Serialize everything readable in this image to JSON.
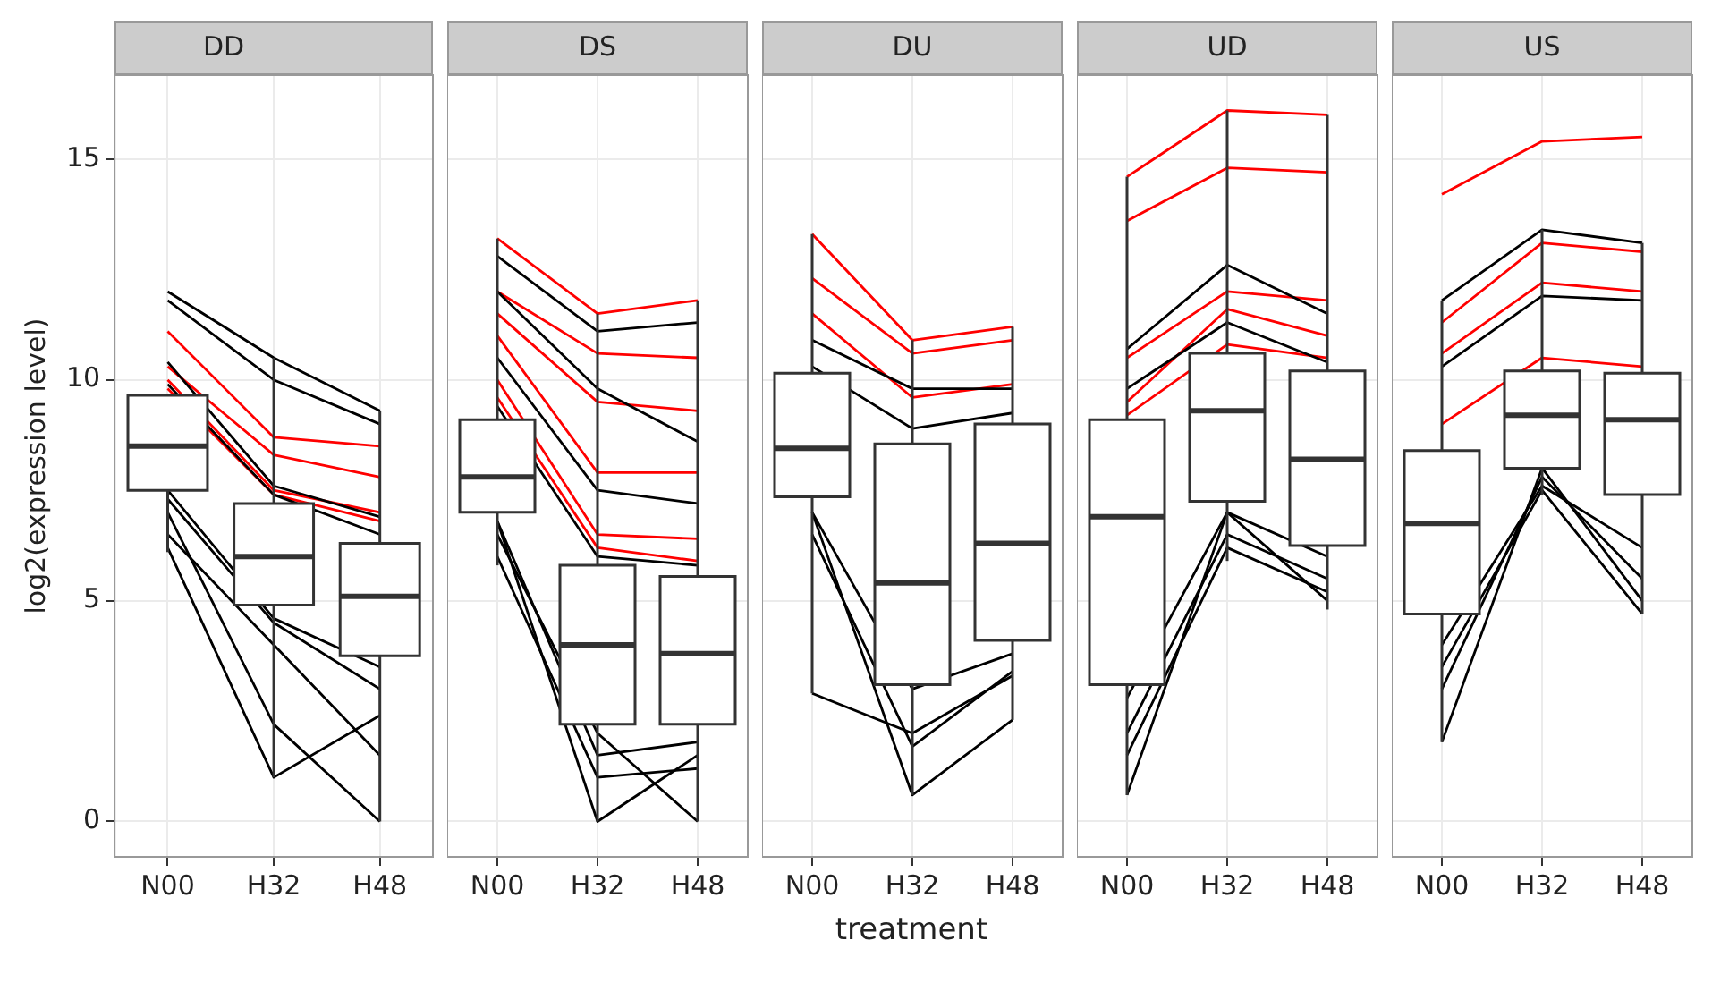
{
  "chart_data": [
    {
      "type": "box",
      "title": "DD",
      "ylabel": "log2(expression level)",
      "categories": [
        "N00",
        "H32",
        "H48"
      ],
      "ylim": [
        -0.8,
        16.9
      ],
      "yticks": [
        0,
        5,
        10,
        15
      ],
      "grid": true,
      "marker": "none",
      "line_style": "solid",
      "boxes": [
        {
          "low": 6.1,
          "q1": 7.5,
          "median": 8.5,
          "q3": 9.65
        },
        {
          "low": 1.0,
          "q1": 4.9,
          "median": 6.0,
          "q3": 7.2,
          "high": 10.5
        },
        {
          "low": 0,
          "q1": 3.75,
          "median": 5.1,
          "q3": 6.3,
          "high": 9.3
        }
      ],
      "series": [
        {
          "type": "line",
          "color": "#000000",
          "values": [
            12.0,
            10.5,
            9.3
          ]
        },
        {
          "type": "line",
          "color": "#000000",
          "values": [
            11.8,
            10.0,
            9.0
          ]
        },
        {
          "type": "line",
          "color": "#000000",
          "values": [
            10.4,
            7.6,
            6.9
          ]
        },
        {
          "type": "line",
          "color": "#000000",
          "values": [
            9.9,
            7.4,
            6.5
          ]
        },
        {
          "type": "line",
          "color": "#000000",
          "values": [
            7.3,
            4.5,
            3.0
          ]
        },
        {
          "type": "line",
          "color": "#000000",
          "values": [
            7.5,
            4.6,
            3.5
          ]
        },
        {
          "type": "line",
          "color": "#000000",
          "values": [
            6.5,
            4.0,
            1.5
          ]
        },
        {
          "type": "line",
          "color": "#000000",
          "values": [
            7.0,
            2.2,
            0.0
          ]
        },
        {
          "type": "line",
          "color": "#000000",
          "values": [
            6.2,
            1.0,
            2.4
          ]
        },
        {
          "type": "line",
          "color": "#ff0000",
          "values": [
            11.1,
            8.7,
            8.5
          ]
        },
        {
          "type": "line",
          "color": "#ff0000",
          "values": [
            10.3,
            8.3,
            7.8
          ]
        },
        {
          "type": "line",
          "color": "#ff0000",
          "values": [
            10.0,
            7.5,
            7.0
          ]
        },
        {
          "type": "line",
          "color": "#ff0000",
          "values": [
            9.8,
            7.4,
            6.8
          ]
        }
      ]
    },
    {
      "type": "box",
      "title": "DS",
      "categories": [
        "N00",
        "H32",
        "H48"
      ],
      "ylim": [
        -0.8,
        16.9
      ],
      "yticks": [
        0,
        5,
        10,
        15
      ],
      "grid": true,
      "marker": "none",
      "line_style": "solid",
      "tick_labels": "x",
      "boxes": [
        {
          "low": 5.8,
          "q1": 7.0,
          "median": 7.8,
          "q3": 9.1,
          "high": 13.2
        },
        {
          "low": 0,
          "q1": 2.2,
          "median": 4.0,
          "q3": 5.8,
          "high": 11.5
        },
        {
          "low": 0,
          "q1": 2.2,
          "median": 3.8,
          "q3": 5.55,
          "high": 11.8
        }
      ],
      "series": [
        {
          "type": "line",
          "color": "#000000",
          "values": [
            12.8,
            11.1,
            11.3
          ]
        },
        {
          "type": "line",
          "color": "#000000",
          "values": [
            12.0,
            9.8,
            8.6
          ]
        },
        {
          "type": "line",
          "color": "#000000",
          "values": [
            10.5,
            7.5,
            7.2
          ]
        },
        {
          "type": "line",
          "color": "#000000",
          "values": [
            9.4,
            6.0,
            5.8
          ]
        },
        {
          "type": "line",
          "color": "#000000",
          "values": [
            6.8,
            1.5,
            1.8
          ]
        },
        {
          "type": "line",
          "color": "#000000",
          "values": [
            6.8,
            0.0,
            1.5
          ]
        },
        {
          "type": "line",
          "color": "#000000",
          "values": [
            6.5,
            2.0,
            0.0
          ]
        },
        {
          "type": "line",
          "color": "#000000",
          "values": [
            6.0,
            1.0,
            1.2
          ]
        },
        {
          "type": "line",
          "color": "#ff0000",
          "values": [
            13.2,
            11.5,
            11.8
          ]
        },
        {
          "type": "line",
          "color": "#ff0000",
          "values": [
            12.0,
            10.6,
            10.5
          ]
        },
        {
          "type": "line",
          "color": "#ff0000",
          "values": [
            11.5,
            9.5,
            9.3
          ]
        },
        {
          "type": "line",
          "color": "#ff0000",
          "values": [
            11.0,
            7.9,
            7.9
          ]
        },
        {
          "type": "line",
          "color": "#ff0000",
          "values": [
            10.0,
            6.5,
            6.4
          ]
        },
        {
          "type": "line",
          "color": "#ff0000",
          "values": [
            9.6,
            6.2,
            5.9
          ]
        }
      ]
    },
    {
      "type": "box",
      "title": "DU",
      "xlabel": "treatment",
      "categories": [
        "N00",
        "H32",
        "H48"
      ],
      "ylim": [
        -0.8,
        16.9
      ],
      "yticks": [
        0,
        5,
        10,
        15
      ],
      "grid": true,
      "marker": "none",
      "line_style": "solid",
      "tick_labels": "x",
      "boxes": [
        {
          "low": 2.9,
          "q1": 7.35,
          "median": 8.45,
          "q3": 10.15,
          "high": 13.3
        },
        {
          "low": 0.6,
          "q1": 3.1,
          "median": 5.4,
          "q3": 8.55,
          "high": 10.9
        },
        {
          "low": 2.3,
          "q1": 4.1,
          "median": 6.3,
          "q3": 9.0,
          "high": 11.2
        }
      ],
      "series": [
        {
          "type": "line",
          "color": "#000000",
          "values": [
            10.9,
            9.8,
            9.8
          ]
        },
        {
          "type": "line",
          "color": "#000000",
          "values": [
            10.3,
            8.9,
            9.25
          ]
        },
        {
          "type": "line",
          "color": "#000000",
          "values": [
            7.0,
            3.0,
            3.8
          ]
        },
        {
          "type": "line",
          "color": "#000000",
          "values": [
            6.5,
            1.7,
            3.4
          ]
        },
        {
          "type": "line",
          "color": "#000000",
          "values": [
            7.0,
            0.6,
            2.3
          ]
        },
        {
          "type": "line",
          "color": "#000000",
          "values": [
            2.9,
            2.0,
            3.3
          ]
        },
        {
          "type": "line",
          "color": "#ff0000",
          "values": [
            13.3,
            10.9,
            11.2
          ]
        },
        {
          "type": "line",
          "color": "#ff0000",
          "values": [
            12.3,
            10.6,
            10.9
          ]
        },
        {
          "type": "line",
          "color": "#ff0000",
          "values": [
            11.5,
            9.6,
            9.9
          ]
        }
      ]
    },
    {
      "type": "box",
      "title": "UD",
      "categories": [
        "N00",
        "H32",
        "H48"
      ],
      "ylim": [
        -0.8,
        16.9
      ],
      "yticks": [
        0,
        5,
        10,
        15
      ],
      "grid": true,
      "marker": "none",
      "line_style": "solid",
      "tick_labels": "x",
      "boxes": [
        {
          "low": 0.6,
          "q1": 3.1,
          "median": 6.9,
          "q3": 9.1,
          "high": 14.6
        },
        {
          "low": 5.9,
          "q1": 7.25,
          "median": 9.3,
          "q3": 10.6,
          "high": 16.1
        },
        {
          "low": 4.8,
          "q1": 6.25,
          "median": 8.2,
          "q3": 10.2,
          "high": 16.0
        }
      ],
      "series": [
        {
          "type": "line",
          "color": "#000000",
          "values": [
            10.7,
            12.6,
            11.5
          ]
        },
        {
          "type": "line",
          "color": "#000000",
          "values": [
            9.8,
            11.3,
            10.4
          ]
        },
        {
          "type": "line",
          "color": "#000000",
          "values": [
            2.0,
            6.5,
            5.5
          ]
        },
        {
          "type": "line",
          "color": "#000000",
          "values": [
            1.5,
            6.2,
            5.2
          ]
        },
        {
          "type": "line",
          "color": "#000000",
          "values": [
            2.8,
            7.0,
            6.0
          ]
        },
        {
          "type": "line",
          "color": "#000000",
          "values": [
            0.6,
            7.0,
            5.0
          ]
        },
        {
          "type": "line",
          "color": "#ff0000",
          "values": [
            14.6,
            16.1,
            16.0
          ]
        },
        {
          "type": "line",
          "color": "#ff0000",
          "values": [
            13.6,
            14.8,
            14.7
          ]
        },
        {
          "type": "line",
          "color": "#ff0000",
          "values": [
            10.5,
            12.0,
            11.8
          ]
        },
        {
          "type": "line",
          "color": "#ff0000",
          "values": [
            9.5,
            11.6,
            11.0
          ]
        },
        {
          "type": "line",
          "color": "#ff0000",
          "values": [
            9.2,
            10.8,
            10.5
          ]
        }
      ]
    },
    {
      "type": "box",
      "title": "US",
      "categories": [
        "N00",
        "H32",
        "H48"
      ],
      "ylim": [
        -0.8,
        16.9
      ],
      "yticks": [
        0,
        5,
        10,
        15
      ],
      "grid": true,
      "marker": "none",
      "line_style": "solid",
      "tick_labels": "x",
      "boxes": [
        {
          "low": 1.8,
          "q1": 4.7,
          "median": 6.75,
          "q3": 8.4,
          "high": 11.8
        },
        {
          "low": 7.4,
          "q1": 8.0,
          "median": 9.2,
          "q3": 10.2,
          "high": 13.4
        },
        {
          "low": 4.7,
          "q1": 7.4,
          "median": 9.1,
          "q3": 10.15,
          "high": 13.1
        }
      ],
      "series": [
        {
          "type": "line",
          "color": "#000000",
          "values": [
            11.8,
            13.4,
            13.1
          ]
        },
        {
          "type": "line",
          "color": "#000000",
          "values": [
            10.3,
            11.9,
            11.8
          ]
        },
        {
          "type": "line",
          "color": "#000000",
          "values": [
            4.0,
            7.6,
            6.2
          ]
        },
        {
          "type": "line",
          "color": "#000000",
          "values": [
            3.0,
            7.8,
            5.5
          ]
        },
        {
          "type": "line",
          "color": "#000000",
          "values": [
            3.5,
            7.5,
            4.7
          ]
        },
        {
          "type": "line",
          "color": "#000000",
          "values": [
            1.8,
            8.0,
            5.0
          ]
        },
        {
          "type": "line",
          "color": "#ff0000",
          "values": [
            14.2,
            15.4,
            15.5
          ]
        },
        {
          "type": "line",
          "color": "#ff0000",
          "values": [
            11.3,
            13.1,
            12.9
          ]
        },
        {
          "type": "line",
          "color": "#ff0000",
          "values": [
            10.6,
            12.2,
            12.0
          ]
        },
        {
          "type": "line",
          "color": "#ff0000",
          "values": [
            9.0,
            10.5,
            10.3
          ]
        }
      ]
    }
  ]
}
